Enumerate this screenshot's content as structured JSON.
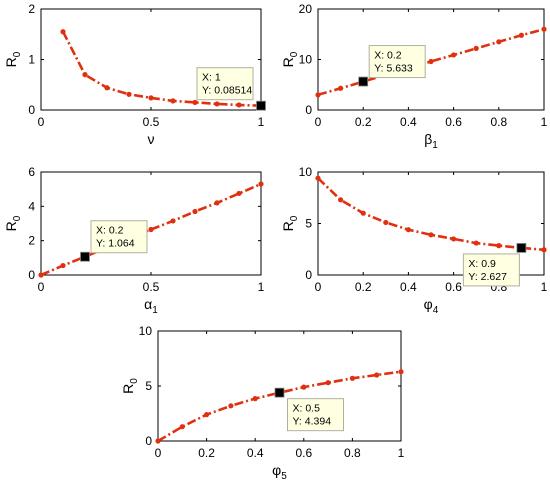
{
  "chart_data": [
    {
      "type": "line",
      "xlabel": "ν",
      "xlabel_sub": "",
      "ylabel": "R",
      "ylabel_sub": "0",
      "xlim": [
        0,
        1
      ],
      "ylim": [
        0,
        2
      ],
      "xticks": [
        0,
        0.5,
        1
      ],
      "yticks": [
        0,
        1,
        2
      ],
      "xtick_labels": [
        "0",
        "0.5",
        "1"
      ],
      "ytick_labels": [
        "0",
        "1",
        "2"
      ],
      "series_color": "#e03010",
      "x": [
        0.1,
        0.2,
        0.3,
        0.4,
        0.5,
        0.6,
        0.7,
        0.8,
        0.9,
        1.0
      ],
      "y": [
        1.55,
        0.7,
        0.44,
        0.31,
        0.24,
        0.18,
        0.15,
        0.12,
        0.1,
        0.0851
      ],
      "datatip": {
        "x": 1,
        "y": 0.0851,
        "line1": "X: 1",
        "line2": "Y: 0.08514",
        "side": "upper-left"
      }
    },
    {
      "type": "line",
      "xlabel": "β",
      "xlabel_sub": "1",
      "ylabel": "R",
      "ylabel_sub": "0",
      "xlim": [
        0,
        1
      ],
      "ylim": [
        0,
        20
      ],
      "xticks": [
        0,
        0.2,
        0.4,
        0.6,
        0.8,
        1
      ],
      "yticks": [
        0,
        10,
        20
      ],
      "xtick_labels": [
        "0",
        "0.2",
        "0.4",
        "0.6",
        "0.8",
        "1"
      ],
      "ytick_labels": [
        "0",
        "10",
        "20"
      ],
      "series_color": "#e03010",
      "x": [
        0,
        0.1,
        0.2,
        0.3,
        0.4,
        0.5,
        0.6,
        0.7,
        0.8,
        0.9,
        1.0
      ],
      "y": [
        3.0,
        4.3,
        5.633,
        7.0,
        8.3,
        9.6,
        10.9,
        12.2,
        13.5,
        14.8,
        16.0
      ],
      "datatip": {
        "x": 0.2,
        "y": 5.633,
        "line1": "X: 0.2",
        "line2": "Y: 5.633",
        "side": "upper-right"
      }
    },
    {
      "type": "line",
      "xlabel": "α",
      "xlabel_sub": "1",
      "ylabel": "R",
      "ylabel_sub": "0",
      "xlim": [
        0,
        1
      ],
      "ylim": [
        0,
        6
      ],
      "xticks": [
        0,
        0.5,
        1
      ],
      "yticks": [
        0,
        2,
        4,
        6
      ],
      "xtick_labels": [
        "0",
        "0.5",
        "1"
      ],
      "ytick_labels": [
        "0",
        "2",
        "4",
        "6"
      ],
      "series_color": "#e03010",
      "x": [
        0,
        0.1,
        0.2,
        0.3,
        0.4,
        0.5,
        0.6,
        0.7,
        0.8,
        0.9,
        1.0
      ],
      "y": [
        0.0,
        0.55,
        1.064,
        1.6,
        2.1,
        2.65,
        3.15,
        3.7,
        4.2,
        4.75,
        5.3
      ],
      "datatip": {
        "x": 0.2,
        "y": 1.064,
        "line1": "X: 0.2",
        "line2": "Y: 1.064",
        "side": "upper-right"
      }
    },
    {
      "type": "line",
      "xlabel": "φ",
      "xlabel_sub": "4",
      "ylabel": "R",
      "ylabel_sub": "0",
      "xlim": [
        0,
        1
      ],
      "ylim": [
        0,
        10
      ],
      "xticks": [
        0,
        0.2,
        0.4,
        0.6,
        0.8,
        1
      ],
      "yticks": [
        0,
        5,
        10
      ],
      "xtick_labels": [
        "0",
        "0.2",
        "0.4",
        "0.6",
        "0.8",
        "1"
      ],
      "ytick_labels": [
        "0",
        "5",
        "10"
      ],
      "series_color": "#e03010",
      "x": [
        0,
        0.1,
        0.2,
        0.3,
        0.4,
        0.5,
        0.6,
        0.7,
        0.8,
        0.9,
        1.0
      ],
      "y": [
        9.4,
        7.3,
        6.0,
        5.1,
        4.4,
        3.9,
        3.5,
        3.1,
        2.85,
        2.627,
        2.45
      ],
      "datatip": {
        "x": 0.9,
        "y": 2.627,
        "line1": "X: 0.9",
        "line2": "Y: 2.627",
        "side": "lower-left"
      }
    },
    {
      "type": "line",
      "xlabel": "φ",
      "xlabel_sub": "5",
      "ylabel": "R",
      "ylabel_sub": "0",
      "xlim": [
        0,
        1
      ],
      "ylim": [
        0,
        10
      ],
      "xticks": [
        0,
        0.2,
        0.4,
        0.6,
        0.8,
        1
      ],
      "yticks": [
        0,
        5,
        10
      ],
      "xtick_labels": [
        "0",
        "0.2",
        "0.4",
        "0.6",
        "0.8",
        "1"
      ],
      "ytick_labels": [
        "0",
        "5",
        "10"
      ],
      "series_color": "#e03010",
      "x": [
        0,
        0.1,
        0.2,
        0.3,
        0.4,
        0.5,
        0.6,
        0.7,
        0.8,
        0.9,
        1.0
      ],
      "y": [
        0.0,
        1.3,
        2.4,
        3.2,
        3.85,
        4.394,
        4.9,
        5.3,
        5.7,
        6.0,
        6.3
      ],
      "datatip": {
        "x": 0.5,
        "y": 4.394,
        "line1": "X: 0.5",
        "line2": "Y: 4.394",
        "side": "lower-right"
      }
    }
  ]
}
